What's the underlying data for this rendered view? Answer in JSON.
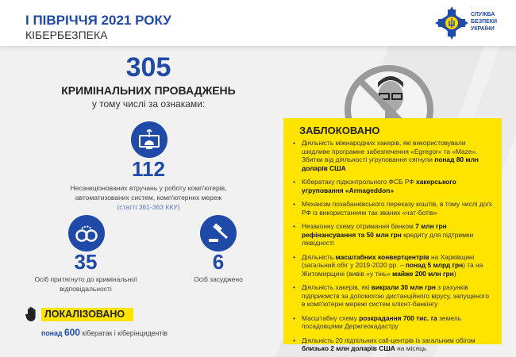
{
  "header": {
    "title": "І ПІВРІЧЧЯ 2021 РОКУ",
    "subtitle": "КІБЕРБЕЗПЕКА",
    "logo": "СЛУЖБА БЕЗПЕКИ УКРАЇНИ",
    "logo_lines": [
      "СЛУЖБА",
      "БЕЗПЕКИ",
      "УКРАЇНИ"
    ]
  },
  "colors": {
    "brand_blue": "#1f4aa8",
    "accent_yellow": "#ffe400"
  },
  "stats": {
    "total": {
      "value": "305",
      "label": "КРИМІНАЛЬНИХ ПРОВАДЖЕНЬ",
      "sub": "у тому числі за ознаками:"
    },
    "intrusions": {
      "icon": "computer-network-icon",
      "value": "112",
      "label1": "Несанкціонованих втручань у роботу комп'ютерів,",
      "label2": "автоматизованих систем, комп'ютерних мереж",
      "note": "(статті 361-363 ККУ)"
    },
    "prosecuted": {
      "icon": "handcuffs-icon",
      "value": "35",
      "label1": "Осіб притягнуто до кримінальної",
      "label2": "відповідальності"
    },
    "convicted": {
      "icon": "gavel-icon",
      "value": "6",
      "label": "Осіб засуджено"
    }
  },
  "localized": {
    "icon": "hand-stop-icon",
    "title": "ЛОКАЛІЗОВАНО",
    "prefix": "понад",
    "value": "600",
    "text": "кібератак і кіберінцидентів"
  },
  "blocked": {
    "title": "ЗАБЛОКОВАНО",
    "items": [
      {
        "parts": [
          [
            "Діяльність міжнародних хакерів, які використовували шкідливе програмне забезпечення «Egregor» та «Maze». Збитки від діяльності угруповання сягнули ",
            0
          ],
          [
            "понад 80 млн доларів США",
            1
          ]
        ]
      },
      {
        "parts": [
          [
            "Кібератаку підконтрольного ФСБ РФ ",
            0
          ],
          [
            "хакерського угруповання «Armageddon»",
            1
          ]
        ]
      },
      {
        "parts": [
          [
            "Механізм позабанківського переказу коштів, в тому числі до/з РФ із використанням так званих «чат-ботів»",
            0
          ]
        ]
      },
      {
        "parts": [
          [
            "Незаконну схему отримання банком ",
            0
          ],
          [
            "7 млн грн рефінансування та 50 млн грн",
            1
          ],
          [
            " кредиту для підтримки ліквідності",
            0
          ]
        ]
      },
      {
        "parts": [
          [
            "Діяльність ",
            0
          ],
          [
            "масштабних конвертцентрів",
            1
          ],
          [
            " на Харківщині (загальний обіг у 2019-2020 рр. – ",
            0
          ],
          [
            "понад 5 млрд грн",
            1
          ],
          [
            ") та на Житомирщині (вивів «у тінь» ",
            0
          ],
          [
            "майже 200 млн грн",
            1
          ],
          [
            ")",
            0
          ]
        ]
      },
      {
        "parts": [
          [
            "Діяльність хакерів, які ",
            0
          ],
          [
            "викрали 30 млн грн",
            1
          ],
          [
            " з рахунків підприємств за допомогою дистанційного вірусу, запущеного в комп'ютерні мережі систем клієнт-банкінгу",
            0
          ]
        ]
      },
      {
        "parts": [
          [
            "Масштабну схему ",
            0
          ],
          [
            "розкрадання 700 тис. га",
            1
          ],
          [
            " земель посадовцями Держгеокадастру",
            0
          ]
        ]
      },
      {
        "parts": [
          [
            "Діяльність 20 підпільних call-центрів із загальним обігом ",
            0
          ],
          [
            "близько 2 млн доларів США",
            1
          ],
          [
            " на місяць",
            0
          ]
        ]
      }
    ]
  }
}
